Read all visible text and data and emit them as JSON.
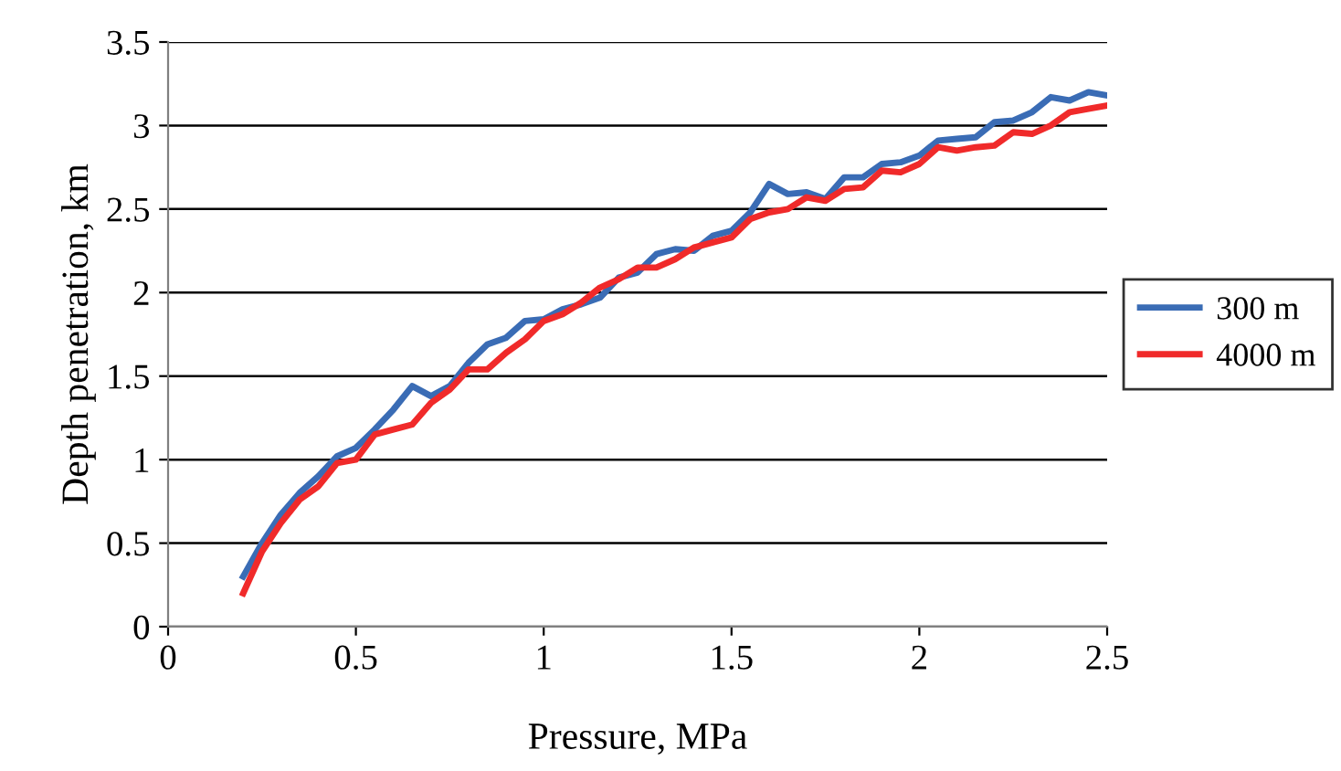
{
  "chart_data": {
    "type": "line",
    "xlabel": "Pressure, MPa",
    "ylabel": "Depth penetration, km",
    "x": [
      0.2,
      0.25,
      0.3,
      0.35,
      0.4,
      0.45,
      0.5,
      0.55,
      0.6,
      0.65,
      0.7,
      0.75,
      0.8,
      0.85,
      0.9,
      0.95,
      1.0,
      1.05,
      1.1,
      1.15,
      1.2,
      1.25,
      1.3,
      1.35,
      1.4,
      1.45,
      1.5,
      1.55,
      1.6,
      1.65,
      1.7,
      1.75,
      1.8,
      1.85,
      1.9,
      1.95,
      2.0,
      2.05,
      2.1,
      2.15,
      2.2,
      2.25,
      2.3,
      2.35,
      2.4,
      2.45,
      2.5
    ],
    "series": [
      {
        "name": "300 m",
        "color": "#3a6cb5",
        "values": [
          0.3,
          0.5,
          0.67,
          0.8,
          0.9,
          1.02,
          1.07,
          1.18,
          1.3,
          1.44,
          1.38,
          1.44,
          1.58,
          1.69,
          1.73,
          1.83,
          1.84,
          1.9,
          1.93,
          1.97,
          2.09,
          2.12,
          2.23,
          2.26,
          2.25,
          2.34,
          2.37,
          2.48,
          2.65,
          2.59,
          2.6,
          2.56,
          2.69,
          2.69,
          2.77,
          2.78,
          2.82,
          2.91,
          2.92,
          2.93,
          3.02,
          3.03,
          3.08,
          3.17,
          3.15,
          3.2,
          3.18
        ]
      },
      {
        "name": "4000 m",
        "color": "#f02a2a",
        "values": [
          0.2,
          0.45,
          0.62,
          0.76,
          0.84,
          0.98,
          1.0,
          1.15,
          1.18,
          1.21,
          1.34,
          1.42,
          1.54,
          1.54,
          1.64,
          1.72,
          1.83,
          1.87,
          1.94,
          2.03,
          2.08,
          2.15,
          2.15,
          2.2,
          2.27,
          2.3,
          2.33,
          2.44,
          2.48,
          2.5,
          2.57,
          2.55,
          2.62,
          2.63,
          2.73,
          2.72,
          2.77,
          2.87,
          2.85,
          2.87,
          2.88,
          2.96,
          2.95,
          3.0,
          3.08,
          3.1,
          3.12
        ]
      }
    ],
    "xlim": [
      0,
      2.5
    ],
    "xticks": [
      0,
      0.5,
      1,
      1.5,
      2,
      2.5
    ],
    "ylim": [
      0,
      3.5
    ],
    "yticks": [
      0,
      0.5,
      1,
      1.5,
      2,
      2.5,
      3,
      3.5
    ],
    "grid": "y",
    "legend": "right",
    "marker": "none",
    "line_style": "solid"
  }
}
